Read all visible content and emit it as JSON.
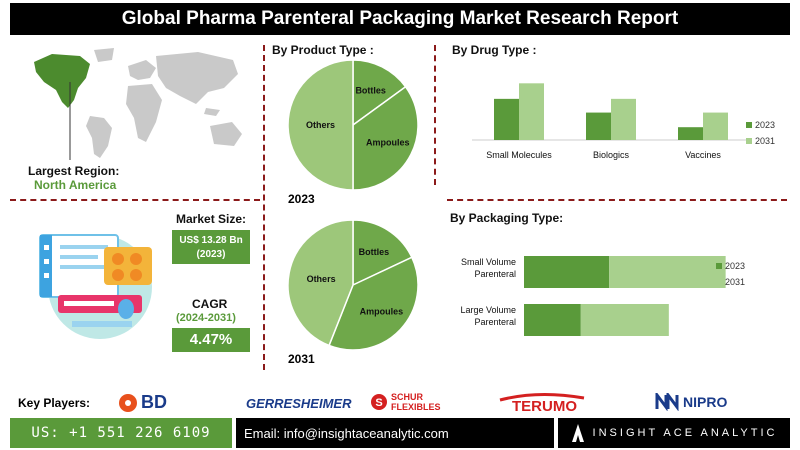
{
  "title": "Global Pharma Parenteral Packaging Market Research Report",
  "largest_region": {
    "label": "Largest Region:",
    "value": "North America"
  },
  "market_size": {
    "label": "Market Size:",
    "value_line1": "US$ 13.28 Bn",
    "value_line2": "(2023)"
  },
  "cagr": {
    "label": "CAGR",
    "period": "(2024-2031)",
    "value": "4.47%"
  },
  "key_players": {
    "label": "Key Players:",
    "items": [
      "BD",
      "GERRESHEIMER",
      "SCHUR FLEXIBLES",
      "TERUMO",
      "NIPRO"
    ]
  },
  "footer": {
    "phone": "US: +1 551 226 6109",
    "email": "Email: info@insightaceanalytic.com",
    "brand": "INSIGHT ACE ANALYTIC"
  },
  "colors": {
    "dark_green": "#5a9a3a",
    "mid_green": "#86b95c",
    "light_green": "#a8d08d",
    "divider": "#8b1a1a"
  },
  "chart_data": [
    {
      "type": "pie",
      "section_title": "By  Product Type :",
      "title": "2023",
      "labels": [
        "Bottles",
        "Ampoules",
        "Others"
      ],
      "values": [
        15,
        35,
        50
      ]
    },
    {
      "type": "pie",
      "title": "2031",
      "labels": [
        "Bottles",
        "Ampoules",
        "Others"
      ],
      "values": [
        18,
        38,
        44
      ]
    },
    {
      "type": "bar",
      "section_title": "By Drug Type :",
      "categories": [
        "Small Molecules",
        "Biologics",
        "Vaccines"
      ],
      "series": [
        {
          "name": "2023",
          "values": [
            45,
            30,
            14
          ]
        },
        {
          "name": "2031",
          "values": [
            62,
            45,
            30
          ]
        }
      ],
      "ylim": [
        0,
        70
      ],
      "legend": "right"
    },
    {
      "type": "bar",
      "orientation": "horizontal",
      "stacked": true,
      "section_title": "By Packaging Type:",
      "categories": [
        "Small Volume Parenteral",
        "Large Volume Parenteral"
      ],
      "series": [
        {
          "name": "2023",
          "values": [
            60,
            40
          ]
        },
        {
          "name": "2031",
          "values": [
            82,
            62
          ]
        }
      ],
      "xlim": [
        0,
        150
      ],
      "legend": "right"
    }
  ]
}
